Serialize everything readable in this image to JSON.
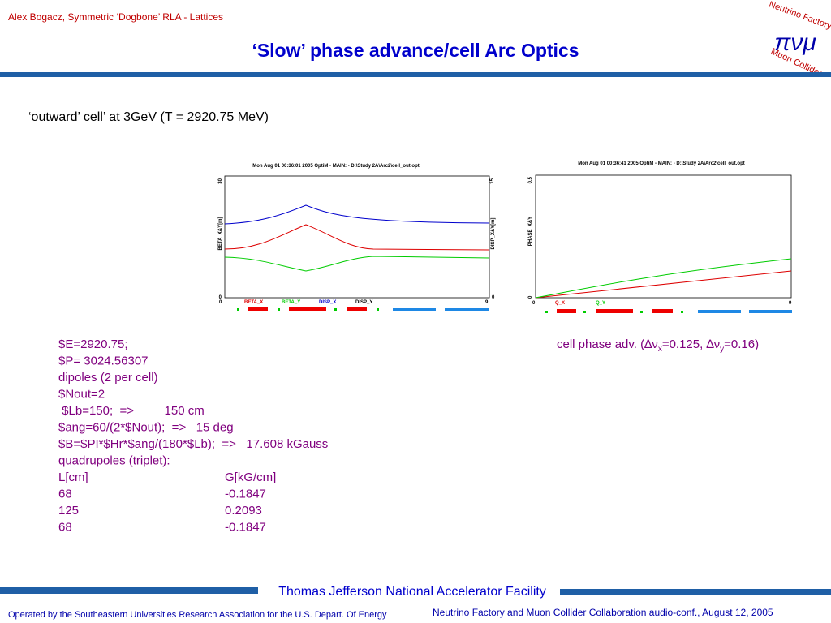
{
  "header": {
    "author_line": "Alex Bogacz, Symmetric ‘Dogbone’ RLA - Lattices",
    "title": "‘Slow’ phase advance/cell Arc Optics",
    "logo": {
      "top": "Neutrino Factory",
      "bottom": "Muon Collider",
      "symbols": "πνμ"
    }
  },
  "subtitle": "‘outward’ cell’ at 3GeV (T = 2920.75  MeV)",
  "plots": [
    {
      "header": "Mon Aug 01 00:36:01 2005    OptiM - MAIN: - D:\\Study 2A\\Arc2\\cell_out.opt",
      "y_top": "30",
      "y_bottom": "0",
      "y2_top": "15",
      "y2_bottom": "0",
      "ylabel": "BETA_X&Y[m]",
      "y2label": "DISP_X&Y[m]",
      "x_left": "0",
      "x_right": "9",
      "legend": [
        "BETA_X",
        "BETA_Y",
        "DISP_X",
        "DISP_Y"
      ]
    },
    {
      "header": "Mon Aug 01 00:36:41 2005    OptiM - MAIN: - D:\\Study 2A\\Arc2\\cell_out.opt",
      "y_top": "0.5",
      "y_bottom": "0",
      "ylabel": "PHASE_X&Y",
      "x_left": "0",
      "x_right": "9",
      "legend": [
        "Q_X",
        "Q_Y"
      ]
    }
  ],
  "params": [
    "$E=2920.75;",
    "$P= 3024.56307",
    "dipoles (2 per cell)",
    "$Nout=2",
    " $Lb=150;  =>         150 cm",
    "$ang=60/(2*$Nout);  =>   15 deg",
    "$B=$PI*$Hr*$ang/(180*$Lb);  =>   17.608 kGauss",
    "quadrupoles (triplet):"
  ],
  "table": {
    "header": [
      "L[cm]",
      "G[kG/cm]"
    ],
    "rows": [
      [
        "68",
        "-0.1847"
      ],
      [
        "125",
        "0.2093"
      ],
      [
        "68",
        "-0.1847"
      ]
    ]
  },
  "phase_adv": {
    "prefix": "cell phase adv. (",
    "delta_x": "∆ν",
    "sub_x": "x",
    "val_x": "=0.125, ",
    "delta_y": "∆ν",
    "sub_y": "y",
    "val_y": "=0.16)"
  },
  "footer": {
    "lab": "Thomas Jefferson National Accelerator Facility",
    "left": "Operated by the Southeastern Universities Research Association for the U.S. Depart. Of Energy",
    "right": "Neutrino Factory and Muon Collider Collaboration audio-conf., August 12, 2005"
  }
}
